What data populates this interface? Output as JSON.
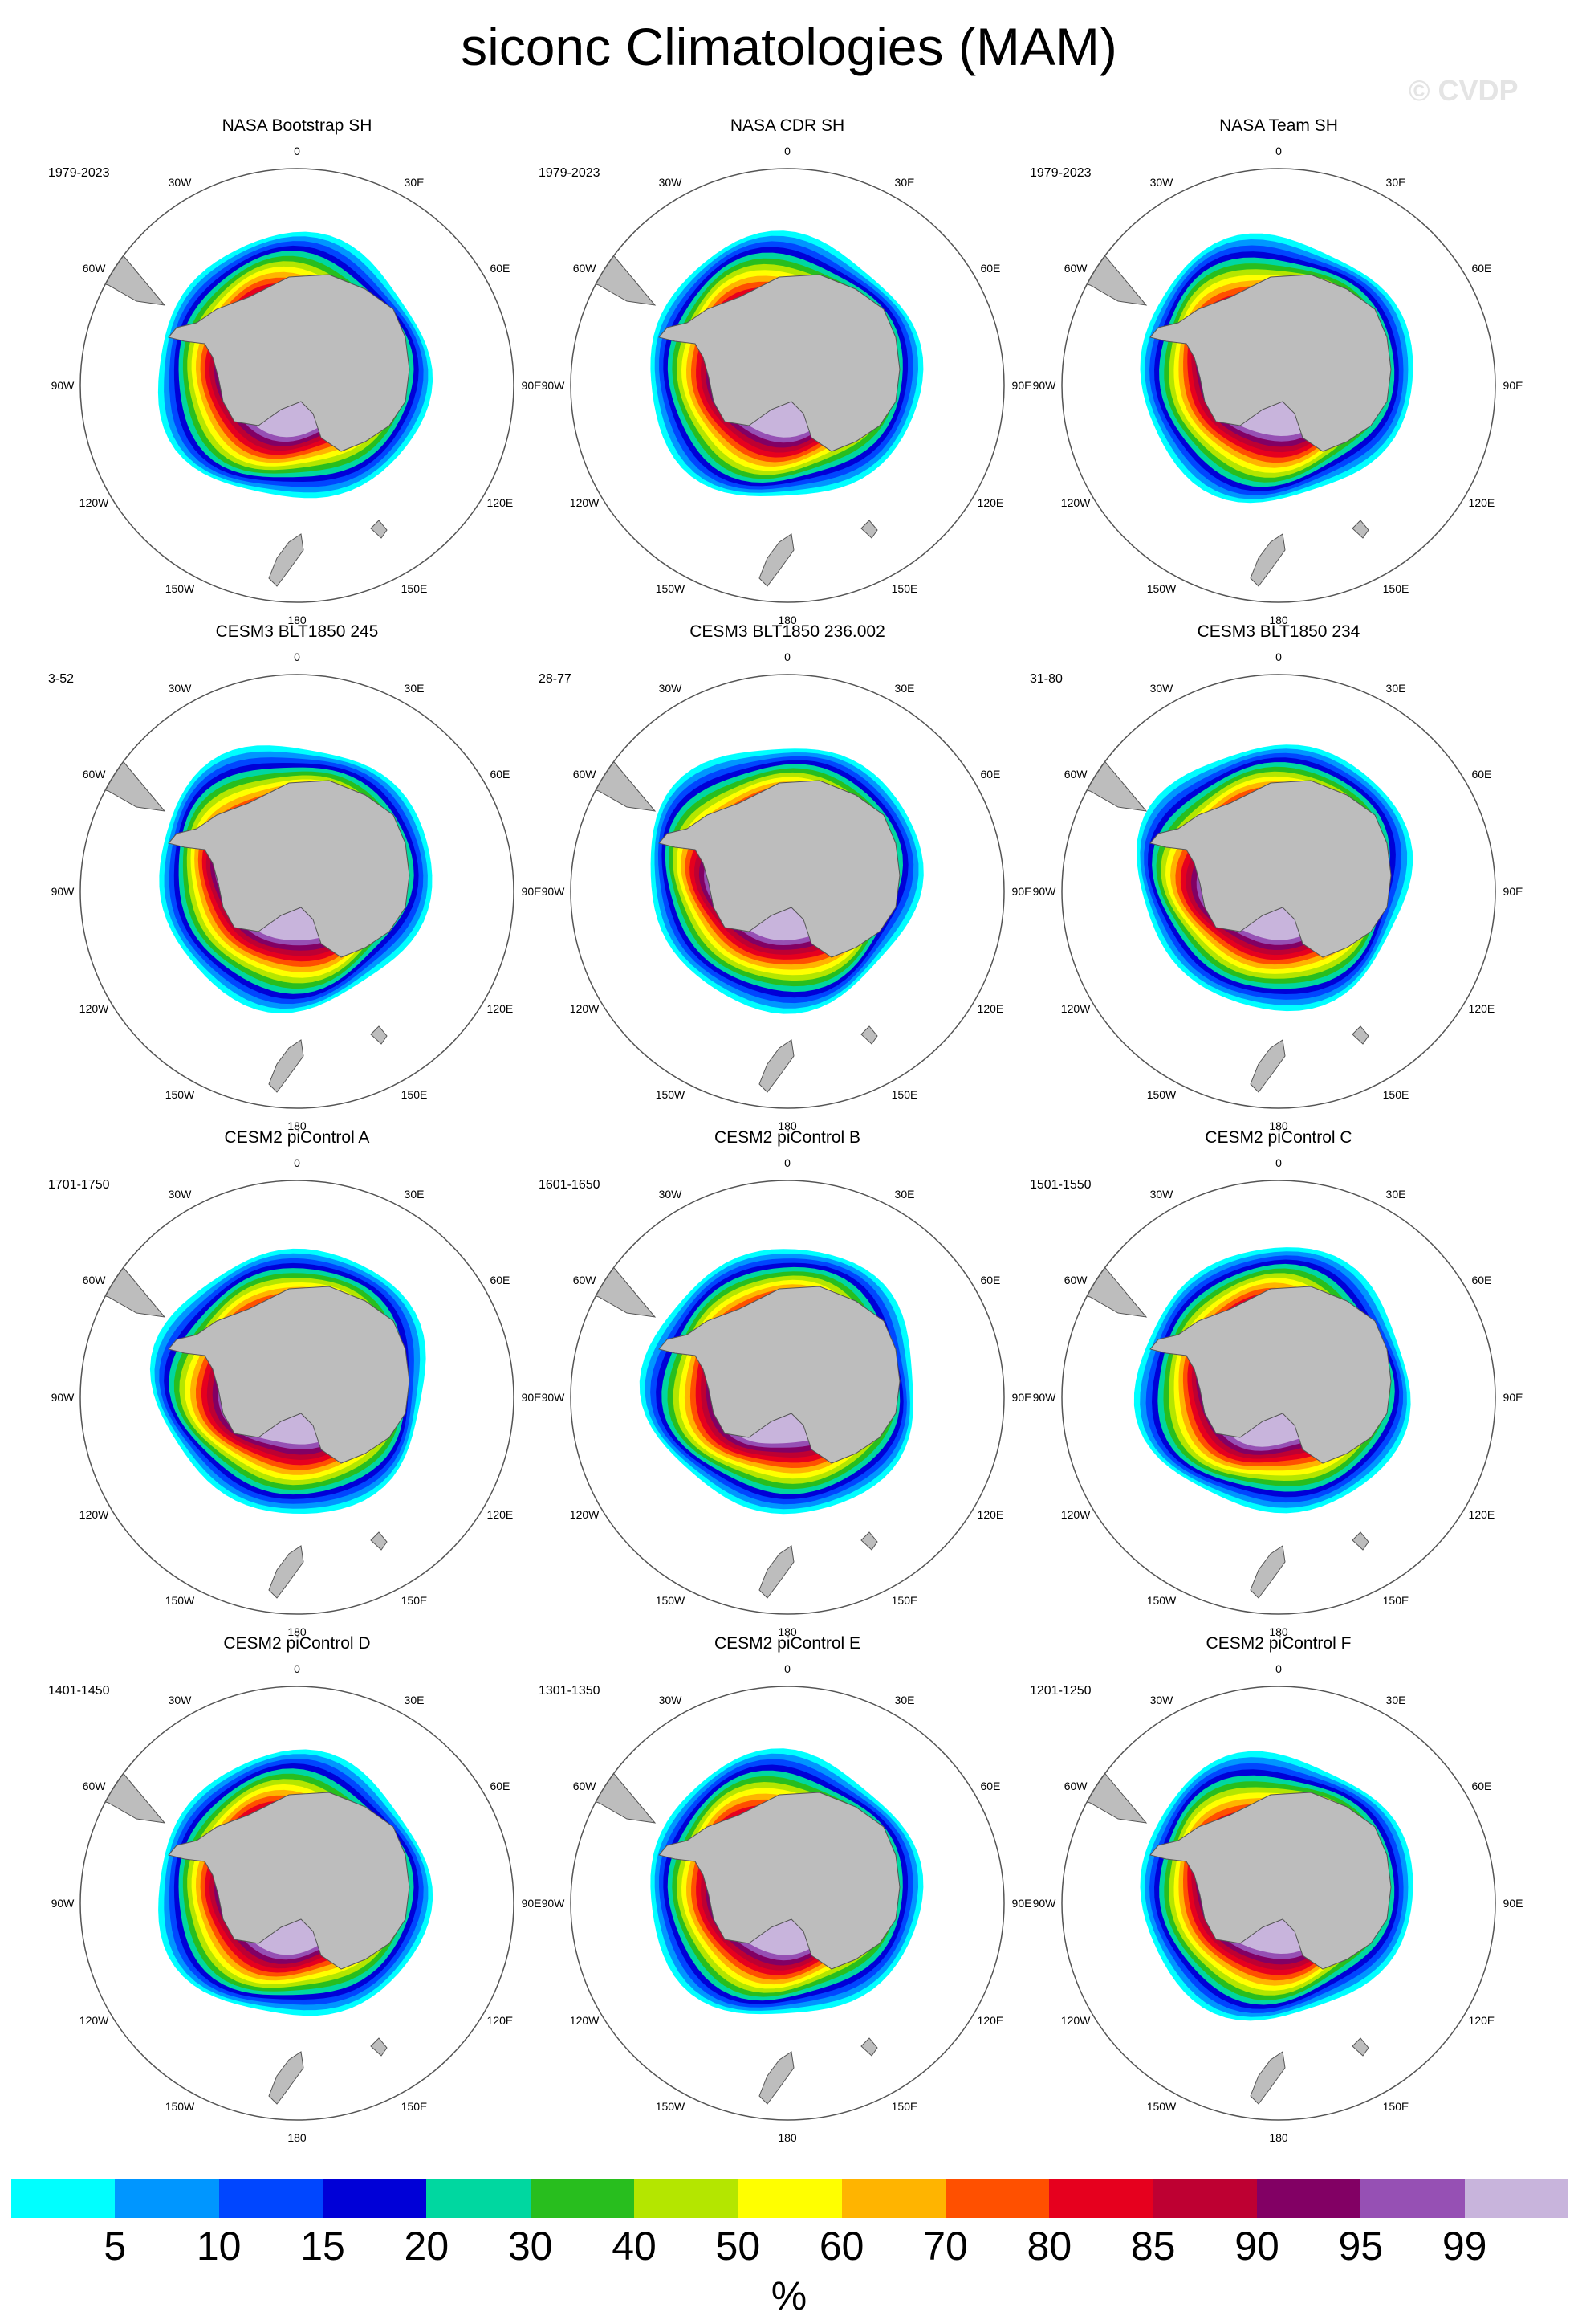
{
  "title": "siconc Climatologies (MAM)",
  "watermark": "© CVDP",
  "meridian_labels": [
    "0",
    "30E",
    "60E",
    "90E",
    "120E",
    "150E",
    "180",
    "150W",
    "120W",
    "90W",
    "60W",
    "30W"
  ],
  "panels": [
    {
      "title": "NASA Bootstrap SH",
      "period": "1979-2023"
    },
    {
      "title": "NASA CDR SH",
      "period": "1979-2023"
    },
    {
      "title": "NASA Team SH",
      "period": "1979-2023"
    },
    {
      "title": "CESM3 BLT1850 245",
      "period": "3-52"
    },
    {
      "title": "CESM3 BLT1850 236.002",
      "period": "28-77"
    },
    {
      "title": "CESM3 BLT1850 234",
      "period": "31-80"
    },
    {
      "title": "CESM2 piControl A",
      "period": "1701-1750"
    },
    {
      "title": "CESM2 piControl B",
      "period": "1601-1650"
    },
    {
      "title": "CESM2 piControl C",
      "period": "1501-1550"
    },
    {
      "title": "CESM2 piControl D",
      "period": "1401-1450"
    },
    {
      "title": "CESM2 piControl E",
      "period": "1301-1350"
    },
    {
      "title": "CESM2 piControl F",
      "period": "1201-1250"
    }
  ],
  "colorbar": {
    "colors": [
      "#00ffff",
      "#0096ff",
      "#0046ff",
      "#0000d7",
      "#00d7a0",
      "#28be1e",
      "#b4e600",
      "#ffff00",
      "#ffb400",
      "#ff5000",
      "#e6001e",
      "#be0032",
      "#820064",
      "#9650b4",
      "#c8b4dc"
    ],
    "labels": [
      "5",
      "10",
      "15",
      "20",
      "30",
      "40",
      "50",
      "60",
      "70",
      "80",
      "85",
      "90",
      "95",
      "99"
    ],
    "unit": "%"
  }
}
